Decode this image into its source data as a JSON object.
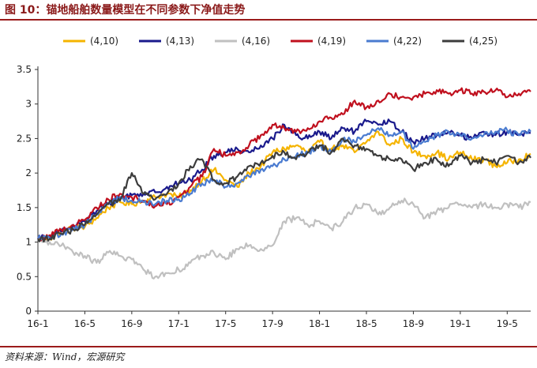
{
  "figure": {
    "title": "图 10：锚地船舶数量模型在不同参数下净值走势",
    "source": "资料来源：Wind，宏源研究"
  },
  "colors": {
    "accent": "#9b1b1b",
    "axis": "#333333"
  },
  "chart_data": {
    "type": "line",
    "title": "锚地船舶数量模型在不同参数下净值走势",
    "xlabel": "",
    "ylabel": "",
    "ylim": [
      0,
      3.5
    ],
    "yticks": [
      "0",
      "0.5",
      "1",
      "1.5",
      "2",
      "2.5",
      "3",
      "3.5"
    ],
    "xlim": [
      0,
      42
    ],
    "xtick_labels": [
      "16-1",
      "16-5",
      "16-9",
      "17-1",
      "17-5",
      "17-9",
      "18-1",
      "18-5",
      "18-9",
      "19-1",
      "19-5"
    ],
    "xtick_positions": [
      0,
      4,
      8,
      12,
      16,
      20,
      24,
      28,
      32,
      36,
      40
    ],
    "legend_position": "top",
    "x": [
      0,
      1,
      2,
      3,
      4,
      5,
      6,
      7,
      8,
      9,
      10,
      11,
      12,
      13,
      14,
      15,
      16,
      17,
      18,
      19,
      20,
      21,
      22,
      23,
      24,
      25,
      26,
      27,
      28,
      29,
      30,
      31,
      32,
      33,
      34,
      35,
      36,
      37,
      38,
      39,
      40,
      41,
      42
    ],
    "series": [
      {
        "name": "(4,10)",
        "color": "#f5b400",
        "values": [
          1.05,
          1.05,
          1.15,
          1.2,
          1.22,
          1.35,
          1.5,
          1.58,
          1.55,
          1.6,
          1.65,
          1.7,
          1.65,
          1.75,
          1.9,
          2.05,
          1.9,
          1.8,
          2.0,
          2.1,
          2.3,
          2.35,
          2.4,
          2.3,
          2.45,
          2.35,
          2.4,
          2.3,
          2.45,
          2.6,
          2.4,
          2.5,
          2.3,
          2.25,
          2.3,
          2.2,
          2.3,
          2.2,
          2.2,
          2.1,
          2.15,
          2.2,
          2.28
        ]
      },
      {
        "name": "(4,13)",
        "color": "#1a1a8c",
        "values": [
          1.05,
          1.08,
          1.15,
          1.25,
          1.3,
          1.45,
          1.55,
          1.65,
          1.68,
          1.7,
          1.72,
          1.8,
          1.85,
          1.9,
          2.05,
          2.25,
          2.3,
          2.35,
          2.3,
          2.4,
          2.5,
          2.7,
          2.55,
          2.5,
          2.6,
          2.5,
          2.65,
          2.6,
          2.75,
          2.7,
          2.75,
          2.6,
          2.45,
          2.5,
          2.55,
          2.6,
          2.55,
          2.5,
          2.6,
          2.55,
          2.6,
          2.55,
          2.58
        ]
      },
      {
        "name": "(4,16)",
        "color": "#c0c0c0",
        "values": [
          1.05,
          1.0,
          0.95,
          0.85,
          0.8,
          0.7,
          0.85,
          0.8,
          0.75,
          0.6,
          0.5,
          0.55,
          0.6,
          0.7,
          0.8,
          0.85,
          0.75,
          0.9,
          0.95,
          0.9,
          0.95,
          1.3,
          1.35,
          1.25,
          1.3,
          1.2,
          1.3,
          1.5,
          1.55,
          1.4,
          1.5,
          1.6,
          1.55,
          1.35,
          1.45,
          1.5,
          1.55,
          1.5,
          1.55,
          1.5,
          1.55,
          1.5,
          1.58
        ]
      },
      {
        "name": "(4,19)",
        "color": "#c0101e",
        "values": [
          1.05,
          1.1,
          1.18,
          1.25,
          1.32,
          1.5,
          1.62,
          1.7,
          1.65,
          1.6,
          1.52,
          1.55,
          1.65,
          1.8,
          1.95,
          2.35,
          2.25,
          2.3,
          2.4,
          2.55,
          2.7,
          2.65,
          2.6,
          2.65,
          2.75,
          2.8,
          2.85,
          3.05,
          2.95,
          3.05,
          3.15,
          3.1,
          3.1,
          3.15,
          3.2,
          3.15,
          3.2,
          3.15,
          3.18,
          3.2,
          3.1,
          3.15,
          3.18
        ]
      },
      {
        "name": "(4,22)",
        "color": "#4a7bd0",
        "values": [
          1.05,
          1.06,
          1.12,
          1.2,
          1.25,
          1.4,
          1.55,
          1.65,
          1.6,
          1.58,
          1.55,
          1.6,
          1.62,
          1.7,
          1.85,
          1.9,
          1.8,
          1.85,
          1.95,
          2.05,
          2.1,
          2.2,
          2.25,
          2.3,
          2.4,
          2.3,
          2.5,
          2.45,
          2.55,
          2.65,
          2.55,
          2.6,
          2.35,
          2.45,
          2.55,
          2.6,
          2.55,
          2.5,
          2.55,
          2.6,
          2.62,
          2.55,
          2.6
        ]
      },
      {
        "name": "(4,25)",
        "color": "#3c3c3c",
        "values": [
          1.05,
          1.05,
          1.12,
          1.18,
          1.25,
          1.4,
          1.55,
          1.6,
          2.0,
          1.7,
          1.62,
          1.7,
          1.85,
          2.1,
          2.2,
          1.9,
          1.85,
          1.95,
          2.1,
          2.15,
          2.25,
          2.3,
          2.2,
          2.3,
          2.4,
          2.3,
          2.5,
          2.4,
          2.35,
          2.25,
          2.2,
          2.2,
          2.05,
          2.15,
          2.2,
          2.1,
          2.25,
          2.15,
          2.2,
          2.15,
          2.25,
          2.15,
          2.22
        ]
      }
    ]
  }
}
